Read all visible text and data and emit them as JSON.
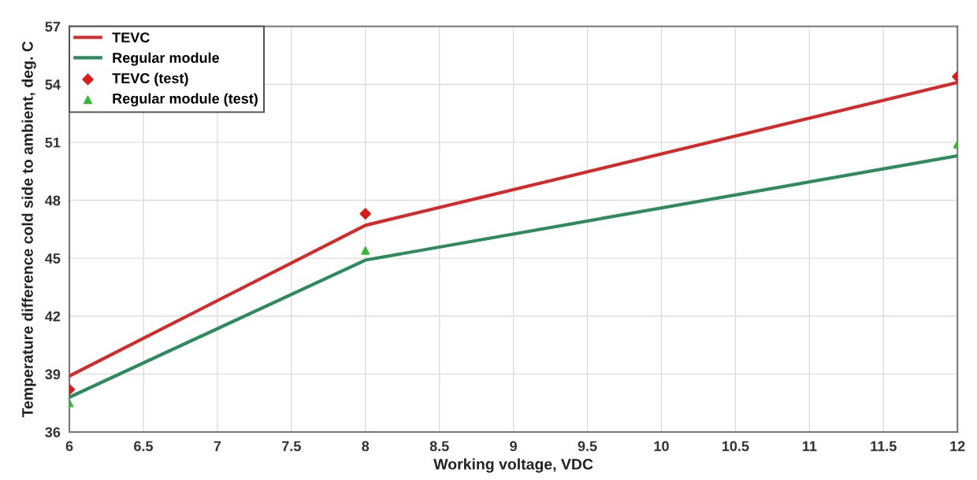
{
  "chart_data": {
    "type": "line",
    "xlabel": "Working voltage, VDC",
    "ylabel": "Temperature difference cold side to ambient, deg. C",
    "x": [
      6,
      8,
      12
    ],
    "series": [
      {
        "name": "TEVC",
        "color": "#d42a2a",
        "values": [
          38.9,
          46.7,
          54.1
        ],
        "marker": "none"
      },
      {
        "name": "Regular module",
        "color": "#2e8b5e",
        "values": [
          37.8,
          44.9,
          50.3
        ],
        "marker": "none"
      },
      {
        "name": "TEVC (test)",
        "type": "scatter",
        "color": "#dd1a1a",
        "values": [
          38.2,
          47.3,
          54.4
        ],
        "marker": "diamond"
      },
      {
        "name": "Regular module (test)",
        "type": "scatter",
        "color": "#33bb33",
        "values": [
          37.5,
          45.4,
          50.9
        ],
        "marker": "triangle"
      }
    ],
    "xlim": [
      6,
      12
    ],
    "xticks": [
      6,
      6.5,
      7,
      7.5,
      8,
      8.5,
      9,
      9.5,
      10,
      10.5,
      11,
      11.5,
      12
    ],
    "ylim": [
      36,
      57
    ],
    "yticks": [
      36,
      39,
      42,
      45,
      48,
      51,
      54,
      57
    ],
    "grid": true,
    "legend": "top left"
  }
}
